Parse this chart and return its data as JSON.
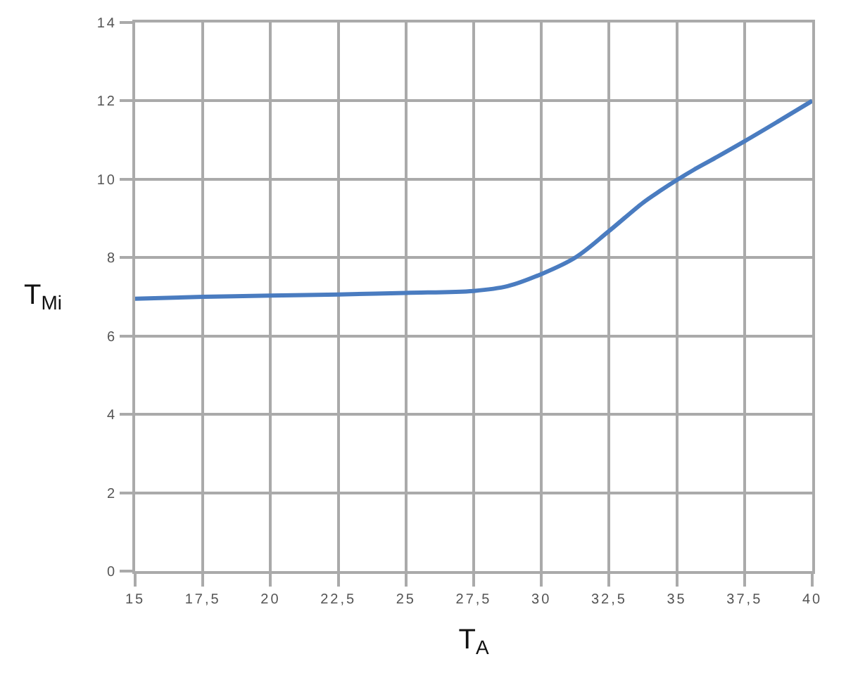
{
  "chart_data": {
    "type": "line",
    "xlabel": "T$_{A}$",
    "ylabel": "T$_{Mi}$",
    "x": [
      15,
      17.5,
      20,
      22.5,
      25,
      27.5,
      28.75,
      30,
      31.25,
      32.5,
      33.75,
      34.375,
      35,
      35.625,
      36.25,
      37.5,
      38.75,
      40
    ],
    "series": [
      {
        "color": "#4a7cc0",
        "values": [
          6.95,
          7.0,
          7.03,
          7.06,
          7.1,
          7.15,
          7.27,
          7.58,
          8.0,
          8.68,
          9.4,
          9.7,
          9.98,
          10.24,
          10.48,
          10.97,
          11.48,
          12.0
        ]
      }
    ],
    "xlim": [
      15,
      40
    ],
    "ylim": [
      0,
      14
    ],
    "xticks": [
      15,
      {
        "value": 17.5,
        "label": "17,5"
      },
      20,
      {
        "value": 22.5,
        "label": "22,5"
      },
      25,
      {
        "value": 27.5,
        "label": "27,5"
      },
      30,
      {
        "value": 32.5,
        "label": "32,5"
      },
      35,
      {
        "value": 37.5,
        "label": "37,5"
      },
      40
    ],
    "yticks": [
      0,
      2,
      4,
      6,
      8,
      10,
      12,
      14
    ],
    "grid": true,
    "marker": "none",
    "line_style": "solid"
  }
}
